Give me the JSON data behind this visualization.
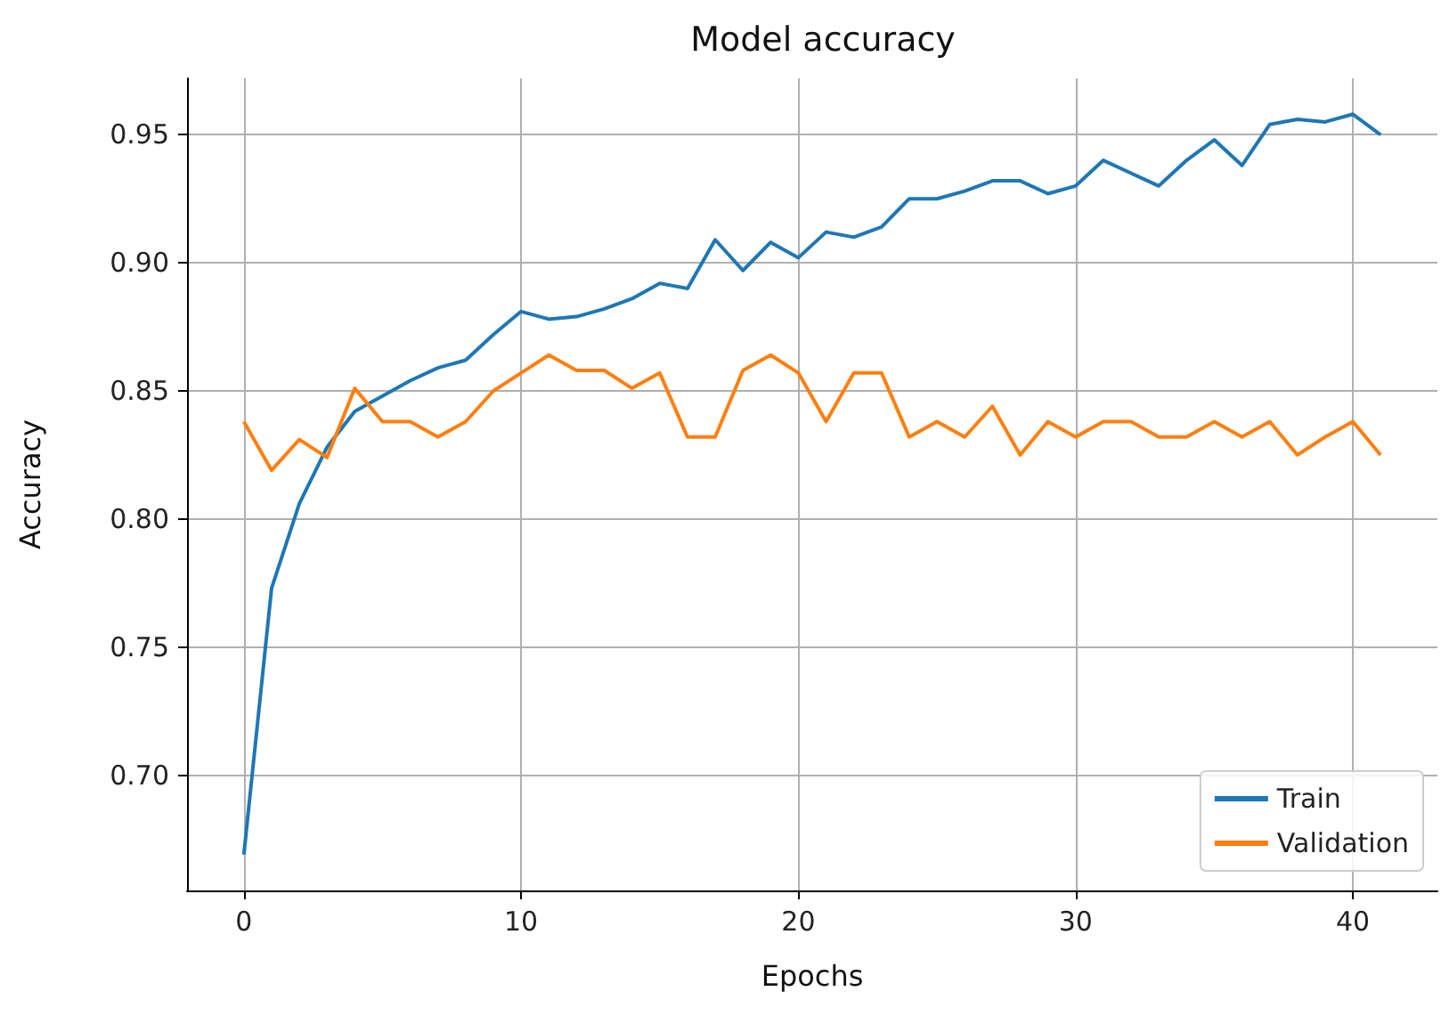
{
  "chart_data": {
    "type": "line",
    "title": "Model accuracy",
    "xlabel": "Epochs",
    "ylabel": "Accuracy",
    "x": [
      0,
      1,
      2,
      3,
      4,
      5,
      6,
      7,
      8,
      9,
      10,
      11,
      12,
      13,
      14,
      15,
      16,
      17,
      18,
      19,
      20,
      21,
      22,
      23,
      24,
      25,
      26,
      27,
      28,
      29,
      30,
      31,
      32,
      33,
      34,
      35,
      36,
      37,
      38,
      39,
      40,
      41
    ],
    "series": [
      {
        "name": "Train",
        "color": "#1f77b4",
        "values": [
          0.669,
          0.773,
          0.806,
          0.828,
          0.842,
          0.848,
          0.854,
          0.859,
          0.862,
          0.872,
          0.881,
          0.878,
          0.879,
          0.882,
          0.886,
          0.892,
          0.89,
          0.909,
          0.897,
          0.908,
          0.902,
          0.912,
          0.91,
          0.914,
          0.925,
          0.925,
          0.928,
          0.932,
          0.932,
          0.927,
          0.93,
          0.94,
          0.935,
          0.93,
          0.94,
          0.948,
          0.938,
          0.954,
          0.956,
          0.955,
          0.958,
          0.95
        ]
      },
      {
        "name": "Validation",
        "color": "#ff7f0e",
        "values": [
          0.838,
          0.819,
          0.831,
          0.824,
          0.851,
          0.838,
          0.838,
          0.832,
          0.838,
          0.85,
          0.857,
          0.864,
          0.858,
          0.858,
          0.851,
          0.857,
          0.832,
          0.832,
          0.858,
          0.864,
          0.857,
          0.838,
          0.857,
          0.857,
          0.832,
          0.838,
          0.832,
          0.844,
          0.825,
          0.838,
          0.832,
          0.838,
          0.838,
          0.832,
          0.832,
          0.838,
          0.832,
          0.838,
          0.825,
          0.832,
          0.838,
          0.825
        ]
      }
    ],
    "xlim": [
      -2.05,
      43.05
    ],
    "xticks": [
      0,
      10,
      20,
      30,
      40
    ],
    "ylim": [
      0.655,
      0.972
    ],
    "yticks": [
      {
        "value": 0.7,
        "label": "0.70"
      },
      {
        "value": 0.75,
        "label": "0.75"
      },
      {
        "value": 0.8,
        "label": "0.80"
      },
      {
        "value": 0.85,
        "label": "0.85"
      },
      {
        "value": 0.9,
        "label": "0.90"
      },
      {
        "value": 0.95,
        "label": "0.95"
      }
    ],
    "grid": true,
    "legend": "bottom right",
    "marker": "none",
    "line_style": "solid"
  }
}
